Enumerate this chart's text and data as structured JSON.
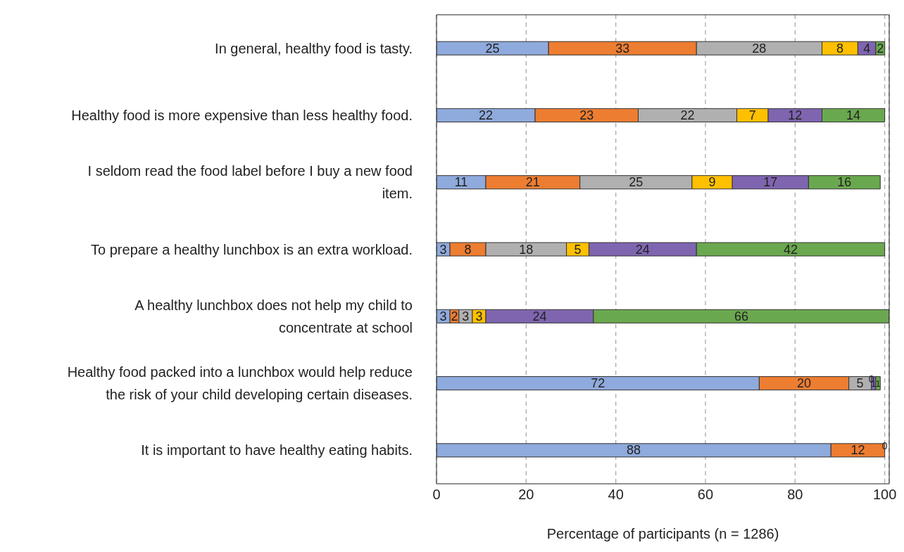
{
  "chart_data": {
    "type": "bar",
    "orientation": "horizontal",
    "stacked": true,
    "xlabel": "Percentage of participants (n = 1286)",
    "categories": [
      "In general, healthy food is tasty.",
      "Healthy food is more expensive than less healthy food.",
      "I seldom read the food label before I buy a new food item.",
      "To prepare a healthy lunchbox is an extra workload.",
      "A healthy lunchbox does not help my child to concentrate at school",
      "Healthy food packed into a lunchbox would help reduce the risk of your child developing certain diseases.",
      "It is important to have healthy eating habits."
    ],
    "series": [
      {
        "color": "#8faadc",
        "values": [
          25,
          22,
          11,
          3,
          3,
          72,
          88
        ],
        "value_labels": [
          "25",
          "22",
          "11",
          "3",
          "3",
          "72",
          "88"
        ]
      },
      {
        "color": "#ed7d31",
        "values": [
          33,
          23,
          21,
          8,
          2,
          20,
          12
        ],
        "value_labels": [
          "33",
          "23",
          "21",
          "8",
          "2",
          "20",
          "12"
        ]
      },
      {
        "color": "#b0b0b0",
        "values": [
          28,
          22,
          25,
          18,
          3,
          5,
          0
        ],
        "value_labels": [
          "28",
          "22",
          "25",
          "18",
          "3",
          "5",
          "0"
        ]
      },
      {
        "color": "#ffc000",
        "values": [
          8,
          7,
          9,
          5,
          3,
          0,
          0
        ],
        "value_labels": [
          "8",
          "7",
          "9",
          "5",
          "3",
          "0",
          null
        ]
      },
      {
        "color": "#7f65b0",
        "values": [
          4,
          12,
          17,
          24,
          24,
          1,
          0
        ],
        "value_labels": [
          "4",
          "12",
          "17",
          "24",
          "24",
          "1",
          null
        ]
      },
      {
        "color": "#6aa84f",
        "values": [
          2,
          14,
          16,
          42,
          66,
          1,
          0
        ],
        "value_labels": [
          "2",
          "14",
          "16",
          "42",
          "66",
          "1",
          null
        ]
      }
    ],
    "xlim": [
      0,
      101
    ],
    "xticks": [
      0,
      20,
      40,
      60,
      80,
      100
    ],
    "grid": "x",
    "legend": false
  }
}
